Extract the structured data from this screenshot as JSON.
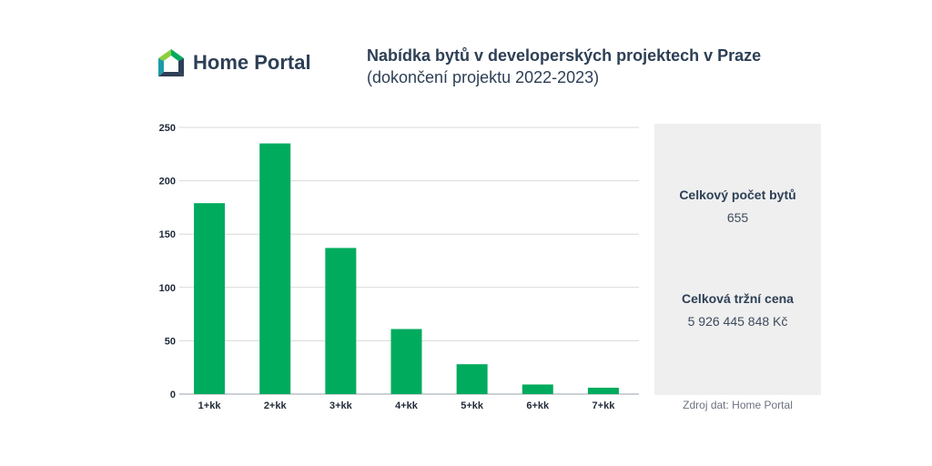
{
  "brand": {
    "name": "Home Portal",
    "colors": {
      "text": "#2d3f55",
      "green": "#00ab5e",
      "light_green": "#8ccf3f",
      "teal": "#1e9aa8",
      "navy": "#2d3f55"
    }
  },
  "header": {
    "title": "Nabídka bytů v developerských projektech v Praze",
    "subtitle": "(dokončení projektu 2022-2023)"
  },
  "chart_data": {
    "type": "bar",
    "categories": [
      "1+kk",
      "2+kk",
      "3+kk",
      "4+kk",
      "5+kk",
      "6+kk",
      "7+kk"
    ],
    "values": [
      179,
      235,
      137,
      61,
      28,
      9,
      6
    ],
    "yticks": [
      "0",
      "50",
      "100",
      "150",
      "200",
      "250"
    ],
    "ylim": [
      0,
      250
    ],
    "grid": true,
    "bar_color": "#00ab5e"
  },
  "stats": {
    "total_count_label": "Celkový počet bytů",
    "total_count_value": "655",
    "total_price_label": "Celková tržní cena",
    "total_price_value": "5 926 445 848 Kč"
  },
  "source": "Zdroj dat: Home Portal"
}
